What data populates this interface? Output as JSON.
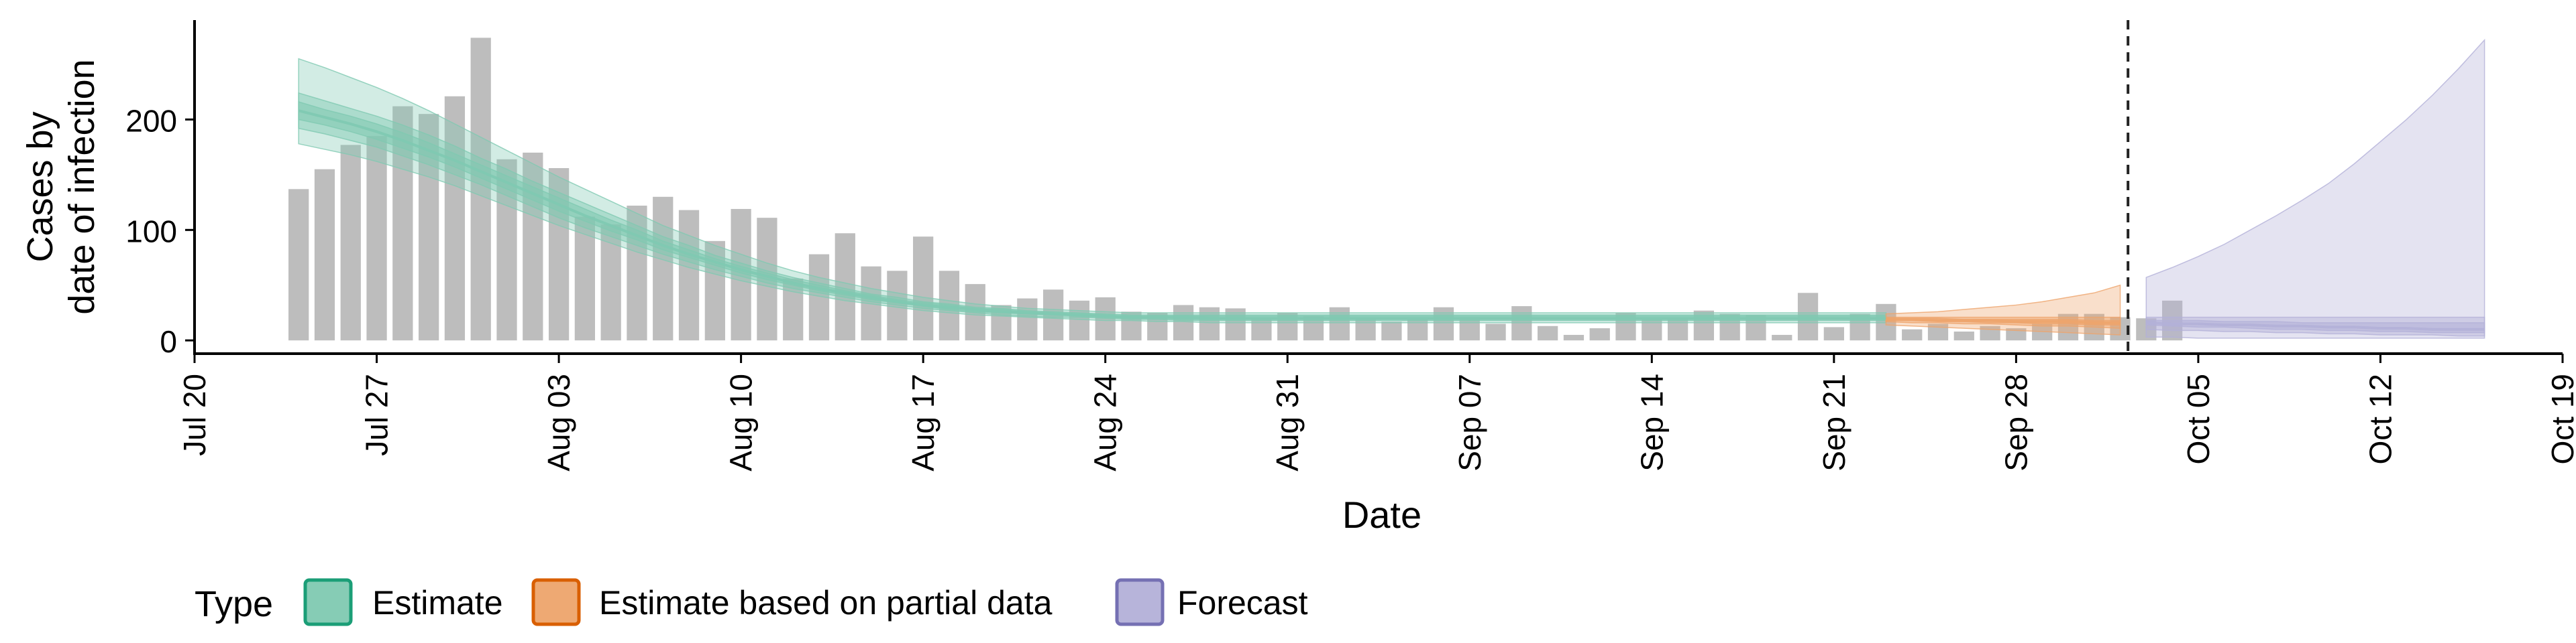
{
  "chart_data": {
    "type": "bar",
    "xlabel": "Date",
    "ylabel_lines": [
      "Cases by",
      "date of infection"
    ],
    "x_ticks": [
      "2020-07-20",
      "2020-07-27",
      "2020-08-03",
      "2020-08-10",
      "2020-08-17",
      "2020-08-24",
      "2020-08-31",
      "2020-09-07",
      "2020-09-14",
      "2020-09-21",
      "2020-09-28",
      "2020-10-05",
      "2020-10-12",
      "2020-10-19"
    ],
    "x_tick_labels": [
      "Jul 20",
      "Jul 27",
      "Aug 03",
      "Aug 10",
      "Aug 17",
      "Aug 24",
      "Aug 31",
      "Sep 07",
      "Sep 14",
      "Sep 21",
      "Sep 28",
      "Oct 05",
      "Oct 12",
      "Oct 19"
    ],
    "xlim": [
      "2020-07-20",
      "2020-10-19"
    ],
    "y_ticks": [
      0,
      100,
      200
    ],
    "ylim": [
      -12,
      290
    ],
    "bar_start_date": "2020-07-24",
    "bars": [
      137,
      155,
      177,
      185,
      212,
      205,
      221,
      274,
      164,
      170,
      156,
      112,
      105,
      122,
      130,
      118,
      90,
      119,
      111,
      56,
      78,
      97,
      67,
      63,
      94,
      63,
      51,
      32,
      38,
      46,
      36,
      39,
      26,
      25,
      32,
      30,
      29,
      20,
      25,
      22,
      30,
      20,
      17,
      19,
      30,
      21,
      15,
      31,
      13,
      5,
      11,
      25,
      19,
      20,
      27,
      24,
      23,
      5,
      43,
      12,
      24,
      33,
      10,
      15,
      8,
      13,
      11,
      15,
      24,
      24,
      21,
      20,
      36
    ],
    "cutoff_date": "2020-10-02",
    "series": [
      {
        "name": "Estimate",
        "color": "#1b9e77",
        "fill": "#7fc9b1",
        "start_date": "2020-07-24",
        "median": [
          208,
          202,
          196,
          189,
          181,
          172,
          163,
          153,
          143,
          133,
          123,
          113,
          104,
          95,
          86,
          78,
          71,
          64,
          58,
          52,
          47,
          43,
          39,
          35,
          32,
          30,
          28,
          26,
          25,
          24,
          23,
          22,
          21,
          21,
          21,
          20,
          20,
          20,
          20,
          20,
          20,
          20,
          20,
          20,
          20,
          20,
          20,
          20,
          20,
          20,
          20,
          20,
          20,
          20,
          20,
          20,
          20,
          20,
          20,
          20,
          20,
          20
        ],
        "band_20_lower": [
          200,
          195,
          189,
          182,
          174,
          166,
          157,
          147,
          137,
          127,
          117,
          108,
          99,
          91,
          82,
          75,
          68,
          61,
          55,
          50,
          45,
          41,
          37,
          34,
          31,
          28,
          26,
          25,
          24,
          23,
          22,
          21,
          20,
          20,
          19,
          19,
          19,
          19,
          19,
          19,
          19,
          19,
          19,
          19,
          19,
          19,
          19,
          19,
          19,
          19,
          19,
          19,
          19,
          19,
          19,
          19,
          19,
          19,
          19,
          19,
          19,
          19
        ],
        "band_20_upper": [
          216,
          209,
          203,
          196,
          188,
          179,
          169,
          159,
          149,
          139,
          129,
          119,
          109,
          100,
          90,
          82,
          74,
          67,
          61,
          55,
          50,
          45,
          41,
          37,
          34,
          32,
          29,
          28,
          26,
          25,
          24,
          23,
          22,
          22,
          22,
          22,
          22,
          22,
          22,
          22,
          22,
          22,
          22,
          22,
          22,
          22,
          22,
          22,
          22,
          22,
          22,
          22,
          22,
          22,
          22,
          22,
          22,
          22,
          22,
          22,
          22,
          22
        ],
        "band_50_lower": [
          192,
          187,
          181,
          175,
          167,
          159,
          150,
          141,
          131,
          121,
          111,
          102,
          94,
          86,
          78,
          71,
          64,
          58,
          52,
          47,
          43,
          39,
          35,
          32,
          29,
          27,
          25,
          23,
          22,
          21,
          21,
          20,
          19,
          19,
          18,
          18,
          18,
          18,
          18,
          18,
          18,
          18,
          18,
          18,
          18,
          18,
          18,
          18,
          18,
          18,
          18,
          18,
          18,
          18,
          18,
          18,
          18,
          18,
          18,
          18,
          18,
          18
        ],
        "band_50_upper": [
          224,
          217,
          210,
          203,
          195,
          186,
          176,
          165,
          155,
          144,
          134,
          124,
          114,
          104,
          94,
          86,
          77,
          70,
          63,
          57,
          52,
          47,
          42,
          39,
          35,
          33,
          30,
          29,
          27,
          26,
          25,
          24,
          23,
          23,
          23,
          23,
          23,
          23,
          23,
          23,
          23,
          23,
          23,
          23,
          23,
          23,
          23,
          23,
          23,
          23,
          23,
          23,
          23,
          23,
          23,
          23,
          23,
          23,
          23,
          23,
          23,
          23
        ],
        "band_90_lower": [
          178,
          173,
          168,
          162,
          155,
          148,
          140,
          131,
          122,
          113,
          104,
          96,
          88,
          80,
          73,
          66,
          60,
          54,
          49,
          44,
          40,
          36,
          33,
          30,
          27,
          25,
          23,
          22,
          21,
          20,
          19,
          18,
          18,
          17,
          17,
          16,
          16,
          16,
          16,
          16,
          16,
          16,
          16,
          16,
          16,
          16,
          16,
          16,
          16,
          16,
          16,
          16,
          16,
          16,
          16,
          16,
          16,
          16,
          16,
          16,
          16,
          16
        ],
        "band_90_upper": [
          255,
          247,
          238,
          229,
          219,
          208,
          196,
          184,
          172,
          160,
          148,
          137,
          126,
          115,
          104,
          95,
          86,
          78,
          70,
          63,
          57,
          52,
          47,
          43,
          39,
          36,
          33,
          31,
          29,
          28,
          27,
          26,
          25,
          25,
          25,
          25,
          25,
          25,
          25,
          25,
          25,
          25,
          25,
          25,
          25,
          25,
          25,
          25,
          25,
          25,
          25,
          25,
          25,
          25,
          25,
          25,
          25,
          25,
          25,
          25,
          25,
          25
        ]
      },
      {
        "name": "Estimate based on partial data",
        "color": "#d95f02",
        "fill": "#eda46b",
        "start_date": "2020-09-23",
        "median": [
          19,
          19,
          18,
          18,
          18,
          17,
          17,
          17,
          16,
          16
        ],
        "band_20_lower": [
          18,
          18,
          17,
          17,
          16,
          16,
          15,
          15,
          14,
          14
        ],
        "band_20_upper": [
          20,
          20,
          20,
          19,
          19,
          19,
          19,
          19,
          18,
          18
        ],
        "band_50_lower": [
          17,
          16,
          16,
          15,
          15,
          14,
          13,
          13,
          12,
          11
        ],
        "band_50_upper": [
          21,
          21,
          21,
          21,
          21,
          21,
          21,
          21,
          21,
          21
        ],
        "band_90_lower": [
          14,
          13,
          12,
          11,
          10,
          9,
          8,
          7,
          6,
          5
        ],
        "band_90_upper": [
          24,
          25,
          26,
          28,
          30,
          32,
          35,
          39,
          43,
          50
        ]
      },
      {
        "name": "Forecast",
        "color": "#7570b3",
        "fill": "#b3b0d8",
        "start_date": "2020-10-03",
        "median": [
          16,
          15,
          15,
          14,
          14,
          13,
          13,
          12,
          12,
          11,
          11,
          10,
          10,
          10
        ],
        "band_20_lower": [
          14,
          13,
          12,
          12,
          11,
          10,
          10,
          9,
          9,
          8,
          8,
          7,
          7,
          7
        ],
        "band_20_upper": [
          18,
          18,
          18,
          17,
          17,
          17,
          16,
          16,
          16,
          16,
          16,
          16,
          16,
          16
        ],
        "band_50_lower": [
          10,
          9,
          9,
          8,
          8,
          7,
          7,
          6,
          6,
          5,
          5,
          5,
          4,
          4
        ],
        "band_50_upper": [
          21,
          21,
          21,
          21,
          21,
          21,
          21,
          21,
          21,
          21,
          21,
          21,
          21,
          21
        ],
        "band_90_lower": [
          3,
          3,
          2,
          2,
          2,
          2,
          2,
          2,
          2,
          2,
          2,
          2,
          2,
          2
        ],
        "band_90_upper": [
          57,
          66,
          76,
          87,
          100,
          113,
          127,
          142,
          160,
          180,
          200,
          222,
          246,
          272
        ]
      }
    ],
    "legend": {
      "position": "bottom",
      "title": "Type",
      "entries": [
        "Estimate",
        "Estimate based on partial data",
        "Forecast"
      ]
    },
    "grid": false
  }
}
